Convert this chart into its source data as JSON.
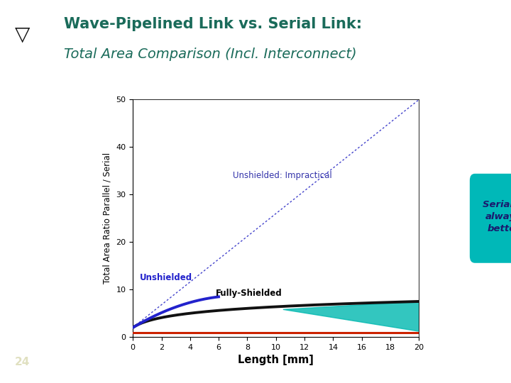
{
  "title_line1": "Wave-Pipelined Link vs. Serial Link:",
  "title_line2": "Total Area Comparison (Incl. Interconnect)",
  "xlabel": "Length [mm]",
  "ylabel": "Total Area Ratio Parallel / Serial",
  "xlim": [
    0,
    20
  ],
  "ylim": [
    0,
    50
  ],
  "xticks": [
    0,
    2,
    4,
    6,
    8,
    10,
    12,
    14,
    16,
    18,
    20
  ],
  "yticks": [
    0,
    10,
    20,
    30,
    40,
    50
  ],
  "title1_color": "#1a6b5a",
  "title2_color": "#1a6b5a",
  "sidebar_color": "#a0c898",
  "logo_box_color": "#6aaa72",
  "white_bg": "#ffffff",
  "page_num": "24",
  "serial_is_better_text": "Serial is\nalways\nbetter",
  "callout_bg": "#00b8b8",
  "callout_text_color": "#1a1a6e",
  "red_line_color": "#cc2200",
  "blue_dotted_color": "#4444cc",
  "blue_solid_color": "#2222cc",
  "black_line_color": "#111111",
  "teal_wedge_color": "#00b8b0"
}
